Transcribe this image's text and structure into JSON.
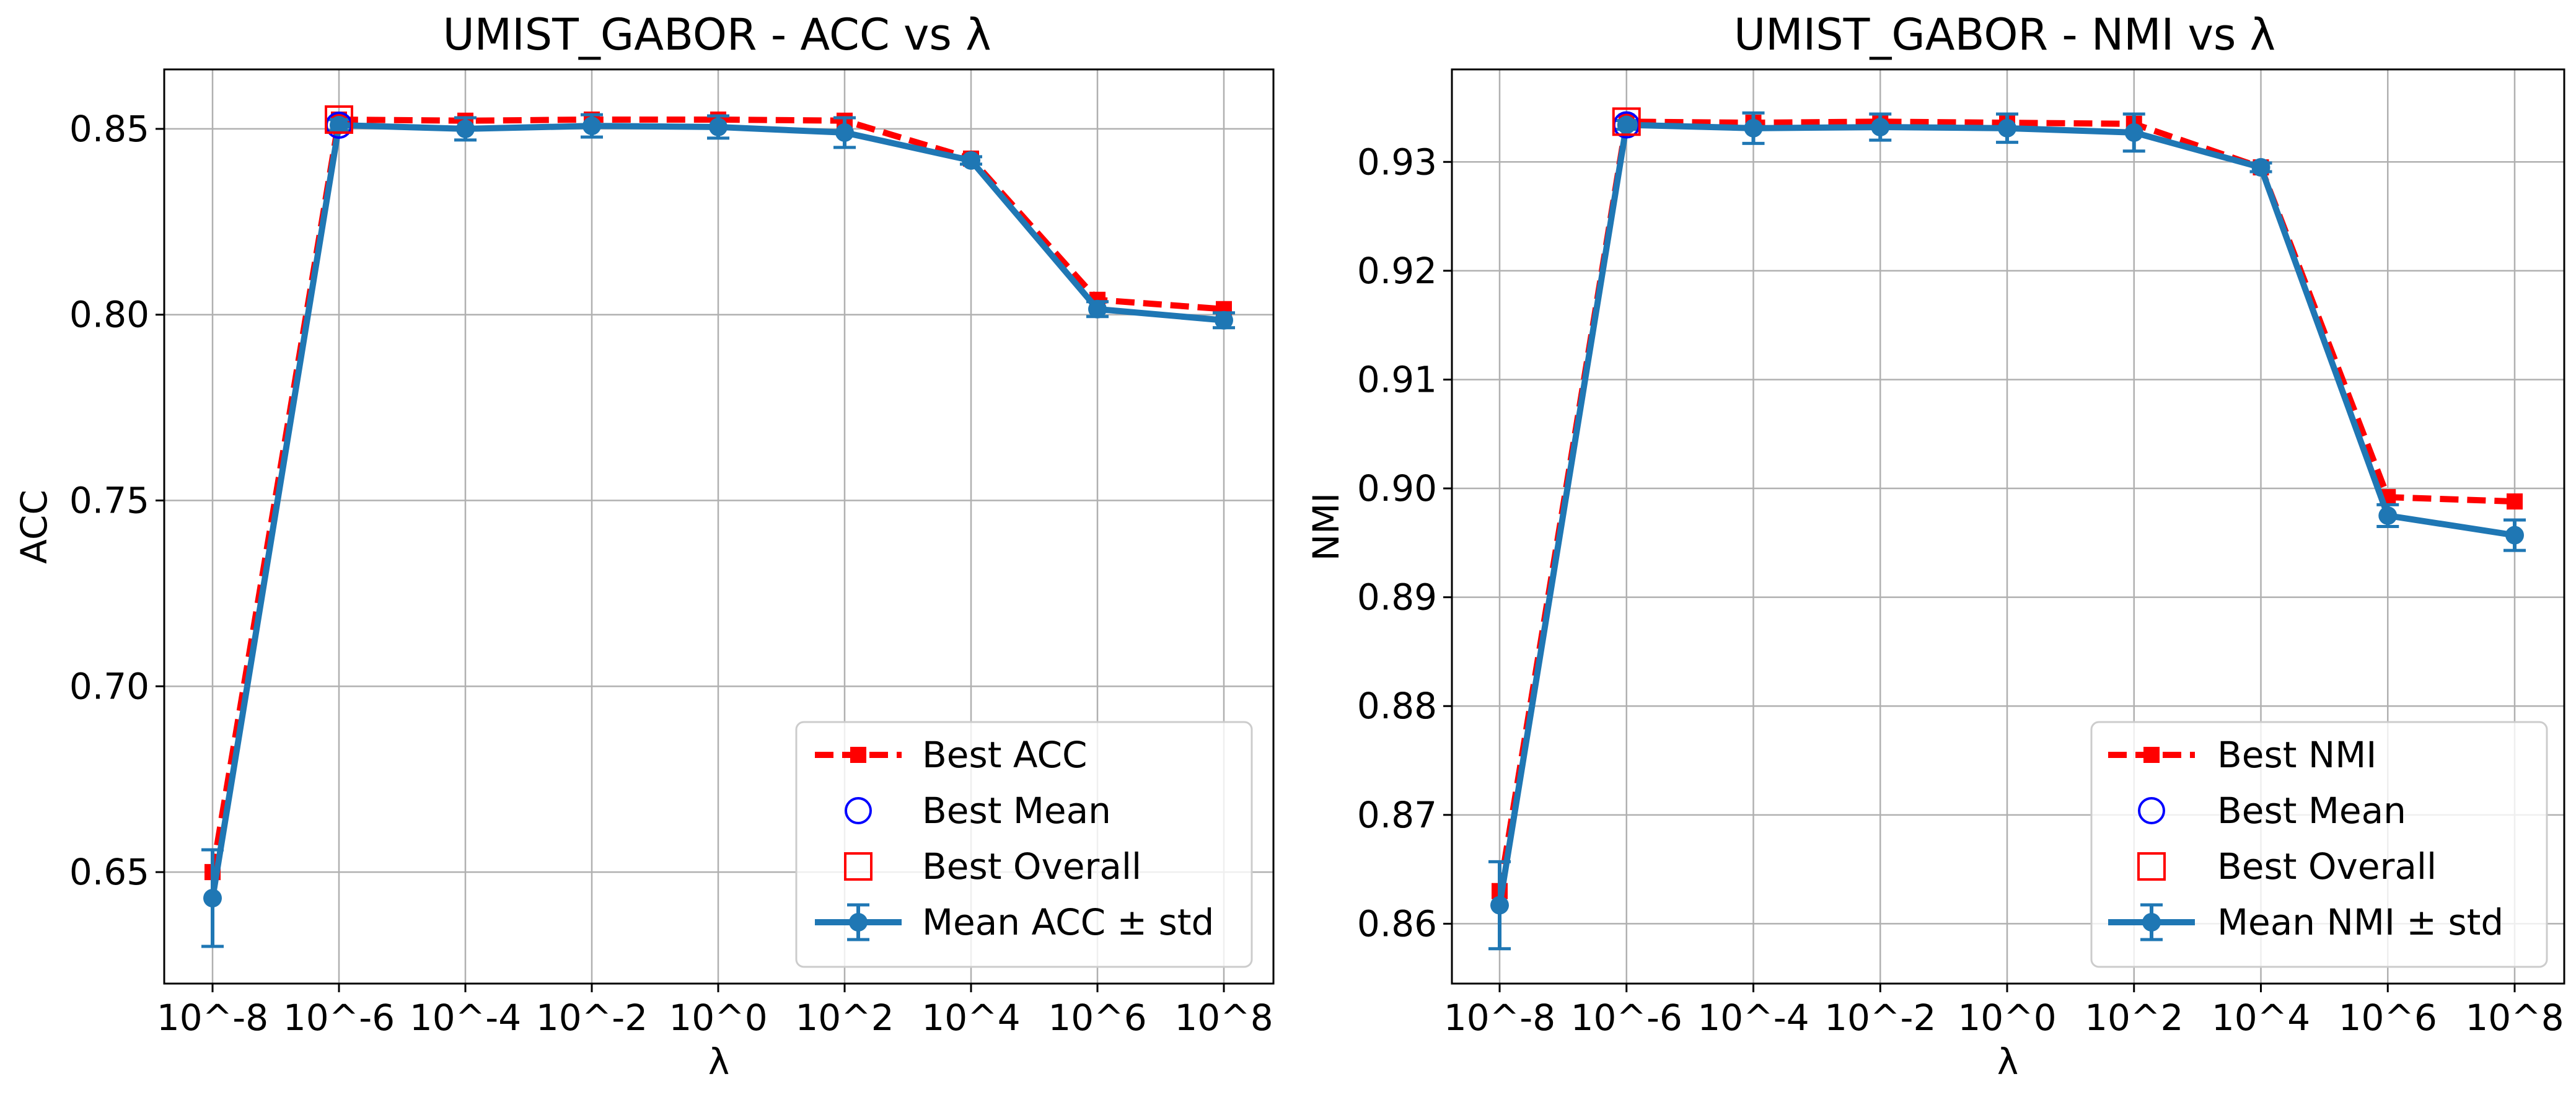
{
  "colors": {
    "best_line": "#ff0000",
    "mean_line": "#1f77b4",
    "best_mean_marker": "#0000ff",
    "best_overall_marker": "#ff0000",
    "grid": "#b0b0b0",
    "axes": "#000000"
  },
  "chart_data": [
    {
      "type": "line",
      "title": "UMIST_GABOR - ACC vs λ",
      "xlabel": "λ",
      "ylabel": "ACC",
      "categories": [
        "10^-8",
        "10^-6",
        "10^-4",
        "10^-2",
        "10^0",
        "10^2",
        "10^4",
        "10^6",
        "10^8"
      ],
      "ylim": [
        0.62,
        0.866
      ],
      "yticks": [
        0.65,
        0.7,
        0.75,
        0.8,
        0.85
      ],
      "ytick_labels": [
        "0.65",
        "0.70",
        "0.75",
        "0.80",
        "0.85"
      ],
      "grid": true,
      "legend_position": "lower-right",
      "series": [
        {
          "name": "Best ACC",
          "style": "dashed-square",
          "values": [
            0.65,
            0.8525,
            0.8522,
            0.8525,
            0.8525,
            0.8522,
            0.842,
            0.804,
            0.8015
          ]
        },
        {
          "name": "Mean ACC ± std",
          "style": "solid-errorbar",
          "values": [
            0.643,
            0.851,
            0.85,
            0.8508,
            0.8505,
            0.849,
            0.8415,
            0.8015,
            0.7985
          ],
          "std": [
            0.013,
            0.0015,
            0.003,
            0.003,
            0.003,
            0.004,
            0.001,
            0.002,
            0.002
          ]
        }
      ],
      "markers": [
        {
          "name": "Best Mean",
          "x": "10^-6",
          "value": 0.851
        },
        {
          "name": "Best Overall",
          "x": "10^-6",
          "value": 0.8525
        }
      ]
    },
    {
      "type": "line",
      "title": "UMIST_GABOR - NMI vs λ",
      "xlabel": "λ",
      "ylabel": "NMI",
      "categories": [
        "10^-8",
        "10^-6",
        "10^-4",
        "10^-2",
        "10^0",
        "10^2",
        "10^4",
        "10^6",
        "10^8"
      ],
      "ylim": [
        0.8545,
        0.9385
      ],
      "yticks": [
        0.86,
        0.87,
        0.88,
        0.89,
        0.9,
        0.91,
        0.92,
        0.93
      ],
      "ytick_labels": [
        "0.86",
        "0.87",
        "0.88",
        "0.89",
        "0.90",
        "0.91",
        "0.92",
        "0.93"
      ],
      "grid": true,
      "legend_position": "lower-right",
      "series": [
        {
          "name": "Best NMI",
          "style": "dashed-square",
          "values": [
            0.863,
            0.9337,
            0.9336,
            0.9337,
            0.9336,
            0.9335,
            0.9295,
            0.8992,
            0.8988
          ]
        },
        {
          "name": "Mean NMI ± std",
          "style": "solid-errorbar",
          "values": [
            0.8617,
            0.9334,
            0.9331,
            0.9332,
            0.9331,
            0.9327,
            0.9295,
            0.8975,
            0.8957
          ],
          "std": [
            0.004,
            0.0004,
            0.0014,
            0.0012,
            0.0013,
            0.0017,
            0.0004,
            0.001,
            0.0014
          ]
        }
      ],
      "markers": [
        {
          "name": "Best Mean",
          "x": "10^-6",
          "value": 0.9334
        },
        {
          "name": "Best Overall",
          "x": "10^-6",
          "value": 0.9337
        }
      ]
    }
  ]
}
